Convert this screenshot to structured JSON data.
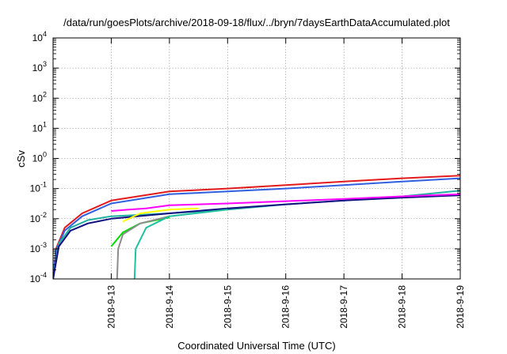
{
  "chart_data": {
    "type": "line",
    "title": "/data/run/goesPlots/archive/2018-09-18/flux/../bryn/7daysEarthDataAccumulated.plot",
    "xlabel": "Coordinated Universal Time (UTC)",
    "ylabel": "cSv",
    "y_scale": "log",
    "ylim": [
      0.0001,
      10000
    ],
    "xlim": [
      "2018-09-12",
      "2018-09-19"
    ],
    "x_ticks": [
      "2018-9-13",
      "2018-9-14",
      "2018-9-15",
      "2018-9-16",
      "2018-9-17",
      "2018-9-18",
      "2018-9-19"
    ],
    "y_ticks": [
      {
        "base": "10",
        "exp": "-4"
      },
      {
        "base": "10",
        "exp": "-3"
      },
      {
        "base": "10",
        "exp": "-2"
      },
      {
        "base": "10",
        "exp": "-1"
      },
      {
        "base": "10",
        "exp": "0"
      },
      {
        "base": "10",
        "exp": "1"
      },
      {
        "base": "10",
        "exp": "2"
      },
      {
        "base": "10",
        "exp": "3"
      },
      {
        "base": "10",
        "exp": "4"
      }
    ],
    "grid": true,
    "legend": "none",
    "series": [
      {
        "color": "#e41a1c",
        "x": [
          "2018-09-12",
          "2018-09-12.05",
          "2018-09-12.2",
          "2018-09-12.5",
          "2018-09-13",
          "2018-09-14",
          "2018-09-15",
          "2018-09-16",
          "2018-09-17",
          "2018-09-18",
          "2018-09-19"
        ],
        "y": [
          0.0001,
          0.001,
          0.005,
          0.015,
          0.04,
          0.08,
          0.1,
          0.13,
          0.17,
          0.22,
          0.27
        ]
      },
      {
        "color": "#3060e0",
        "x": [
          "2018-09-12",
          "2018-09-12.05",
          "2018-09-12.2",
          "2018-09-12.5",
          "2018-09-13",
          "2018-09-14",
          "2018-09-15",
          "2018-09-16",
          "2018-09-17",
          "2018-09-18",
          "2018-09-19"
        ],
        "y": [
          0.0001,
          0.0009,
          0.004,
          0.012,
          0.032,
          0.065,
          0.08,
          0.1,
          0.13,
          0.17,
          0.22
        ]
      },
      {
        "color": "#20b0a0",
        "x": [
          "2018-09-12",
          "2018-09-12.1",
          "2018-09-12.3",
          "2018-09-12.6",
          "2018-09-13",
          "2018-09-14",
          "2018-09-15",
          "2018-09-16",
          "2018-09-17",
          "2018-09-18",
          "2018-09-19"
        ],
        "y": [
          0.0001,
          0.0015,
          0.005,
          0.009,
          0.012,
          0.015,
          0.02,
          0.03,
          0.04,
          0.055,
          0.085
        ]
      },
      {
        "color": "#101080",
        "x": [
          "2018-09-12",
          "2018-09-12.1",
          "2018-09-12.3",
          "2018-09-12.6",
          "2018-09-13",
          "2018-09-14",
          "2018-09-15",
          "2018-09-16",
          "2018-09-17",
          "2018-09-18",
          "2018-09-19"
        ],
        "y": [
          0.0001,
          0.0012,
          0.004,
          0.007,
          0.01,
          0.015,
          0.022,
          0.03,
          0.04,
          0.05,
          0.06
        ]
      },
      {
        "color": "#ff00ff",
        "x": [
          "2018-09-13",
          "2018-09-13.3",
          "2018-09-13.6",
          "2018-09-14",
          "2018-09-15",
          "2018-09-16",
          "2018-09-17",
          "2018-09-18",
          "2018-09-19"
        ],
        "y": [
          0.018,
          0.02,
          0.022,
          0.028,
          0.032,
          0.038,
          0.045,
          0.055,
          0.065
        ]
      },
      {
        "color": "#ffff00",
        "x": [
          "2018-09-13.2",
          "2018-09-13.5",
          "2018-09-14",
          "2018-09-14.5"
        ],
        "y": [
          0.008,
          0.015,
          0.02,
          0.022
        ]
      },
      {
        "color": "#00dd00",
        "x": [
          "2018-09-13",
          "2018-09-13.2",
          "2018-09-13.5",
          "2018-09-14"
        ],
        "y": [
          0.0012,
          0.0035,
          0.007,
          0.011
        ]
      },
      {
        "color": "#8c8c8c",
        "x": [
          "2018-09-13.1",
          "2018-09-13.12",
          "2018-09-13.2",
          "2018-09-13.5",
          "2018-09-14"
        ],
        "y": [
          0.0001,
          0.001,
          0.003,
          0.007,
          0.012
        ]
      },
      {
        "color": "#20c0a0",
        "x": [
          "2018-09-13.4",
          "2018-09-13.42",
          "2018-09-13.6",
          "2018-09-14",
          "2018-09-15"
        ],
        "y": [
          0.0001,
          0.001,
          0.005,
          0.012,
          0.02
        ]
      }
    ]
  }
}
